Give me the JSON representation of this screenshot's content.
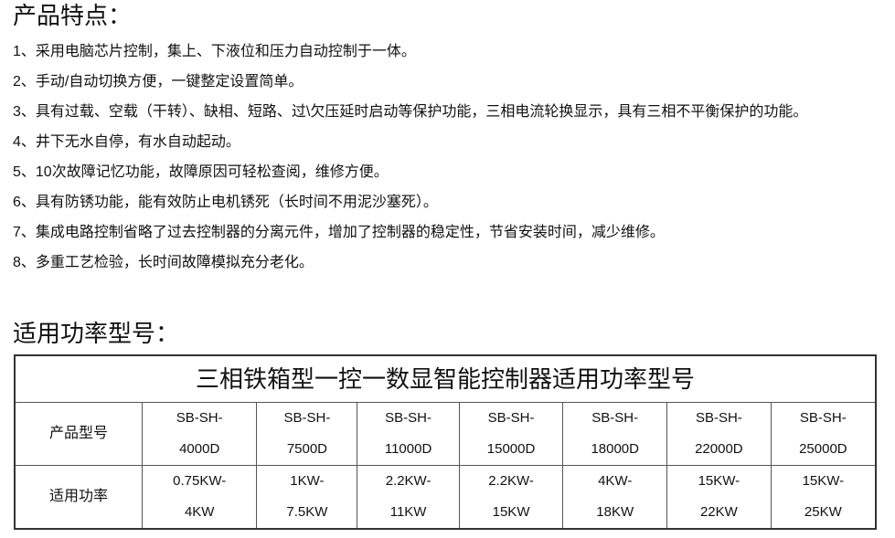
{
  "features_heading": "产品特点：",
  "features": [
    "1、采用电脑芯片控制，集上、下液位和压力自动控制于一体。",
    "2、手动/自动切换方便，一键整定设置简单。",
    "3、具有过载、空载（干转）、缺相、短路、过\\欠压延时启动等保护功能，三相电流轮换显示，具有三相不平衡保护的功能。",
    "4、井下无水自停，有水自动起动。",
    "5、10次故障记忆功能，故障原因可轻松查阅，维修方便。",
    "6、具有防锈功能，能有效防止电机锈死（长时间不用泥沙塞死）。",
    "7、集成电路控制省略了过去控制器的分离元件，增加了控制器的稳定性，节省安装时间，减少维修。",
    "8、多重工艺检验，长时间故障模拟充分老化。"
  ],
  "models_heading": "适用功率型号：",
  "table": {
    "title": "三相铁箱型一控一数显智能控制器适用功率型号",
    "rows": [
      {
        "header": "产品型号",
        "cells": [
          [
            "SB-SH-",
            "4000D"
          ],
          [
            "SB-SH-",
            "7500D"
          ],
          [
            "SB-SH-",
            "11000D"
          ],
          [
            "SB-SH-",
            "15000D"
          ],
          [
            "SB-SH-",
            "18000D"
          ],
          [
            "SB-SH-",
            "22000D"
          ],
          [
            "SB-SH-",
            "25000D"
          ]
        ]
      },
      {
        "header": "适用功率",
        "cells": [
          [
            "0.75KW-",
            "4KW"
          ],
          [
            "1KW-",
            "7.5KW"
          ],
          [
            "2.2KW-",
            "11KW"
          ],
          [
            "2.2KW-",
            "15KW"
          ],
          [
            "4KW-",
            "18KW"
          ],
          [
            "15KW-",
            "22KW"
          ],
          [
            "15KW-",
            "25KW"
          ]
        ]
      }
    ]
  }
}
